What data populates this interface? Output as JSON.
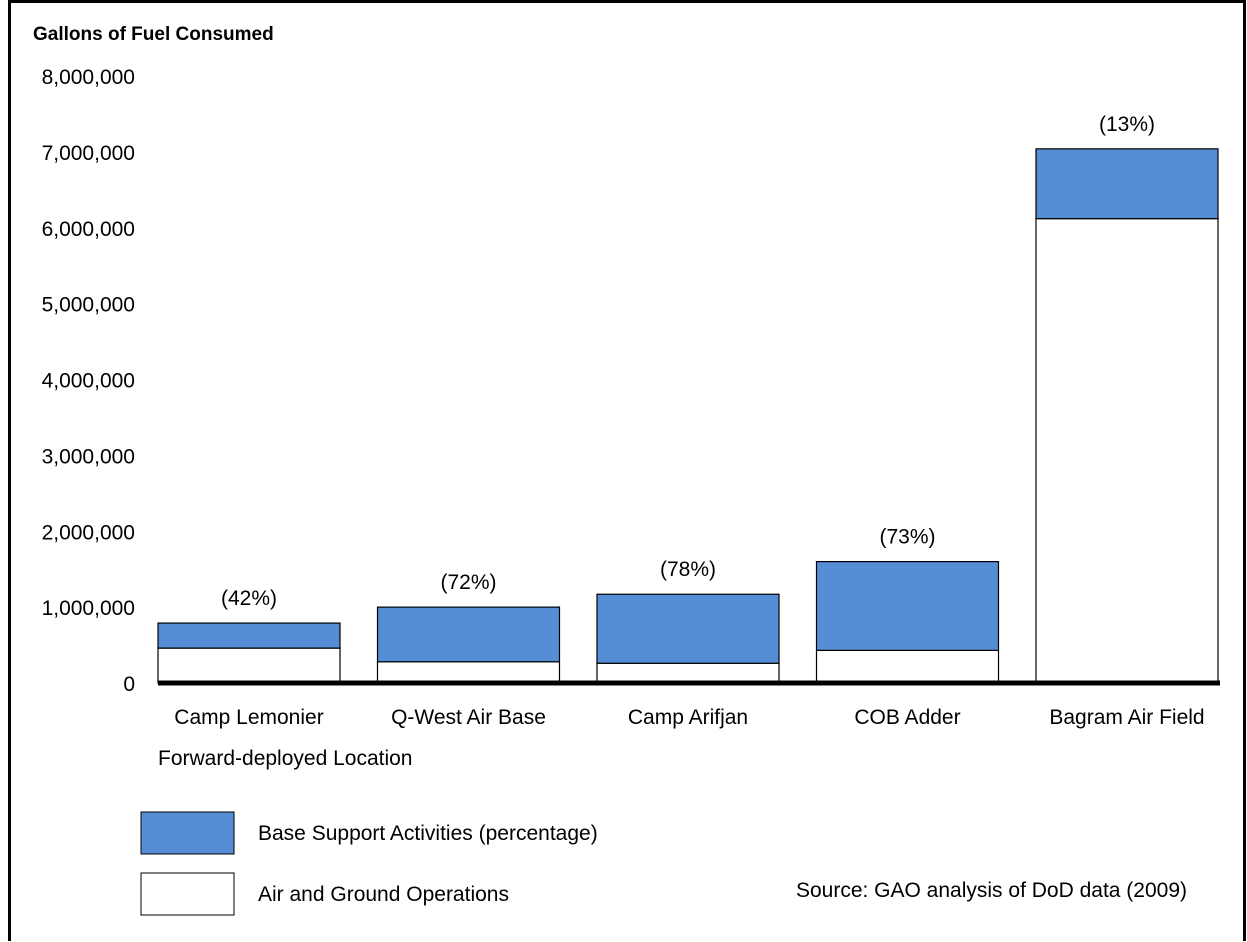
{
  "chart_data": {
    "type": "bar",
    "stacked": true,
    "ylabel": "Gallons of Fuel Consumed",
    "xlabel": "Forward-deployed Location",
    "ylim": [
      0,
      8000000
    ],
    "yticks": [
      "0",
      "1,000,000",
      "2,000,000",
      "3,000,000",
      "4,000,000",
      "5,000,000",
      "6,000,000",
      "7,000,000",
      "8,000,000"
    ],
    "categories": [
      "Camp Lemonier",
      "Q-West Air Base",
      "Camp Arifjan",
      "COB Adder",
      "Bagram Air Field"
    ],
    "series": [
      {
        "name": "Air and Ground Operations",
        "color": "#ffffff",
        "values": [
          460000,
          280000,
          260000,
          430000,
          6120000
        ]
      },
      {
        "name": "Base Support Activities (percentage)",
        "color": "#558ed5",
        "values": [
          330000,
          720000,
          910000,
          1170000,
          920000
        ]
      }
    ],
    "annotations": [
      "(42%)",
      "(72%)",
      "(78%)",
      "(73%)",
      "(13%)"
    ],
    "legend": [
      "Base Support Activities (percentage)",
      "Air and Ground Operations"
    ],
    "source": "Source: GAO analysis of DoD data (2009)",
    "grid": false
  }
}
